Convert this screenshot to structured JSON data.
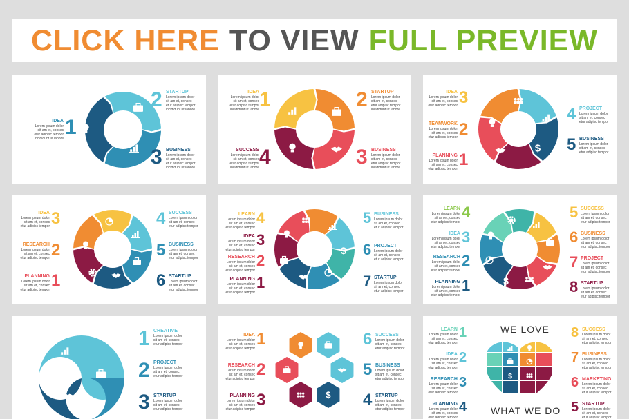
{
  "banner": {
    "part1": "CLICK HERE",
    "part2": "TO VIEW",
    "part3": "FULL PREVIEW",
    "color1": "#f08c32",
    "color2": "#555555",
    "color3": "#7ab829"
  },
  "lorem": "Lorem ipsum dolor\nsit am et, consec\netur adipisc tempor\nincididunt ut labore",
  "lorem_short": "Lorem ipsum dolor\nsit am et, consec\netur adipisc tempor",
  "colors": {
    "cyan": "#5ec4d8",
    "blue": "#2f8fb4",
    "navy": "#1d5a82",
    "yellow": "#f7c242",
    "orange": "#f08c32",
    "red": "#e84e5a",
    "maroon": "#8c1a44",
    "green": "#8cc84b",
    "mint": "#69d2b7",
    "teal": "#3fb4a8"
  },
  "labels": {
    "idea": "IDEA",
    "startup": "STARTUP",
    "business": "BUSINESS",
    "success": "SUCCESS",
    "teamwork": "TEAMWORK",
    "planning": "PLANNING",
    "project": "PROJECT",
    "research": "RESEARCH",
    "learn": "LEARN",
    "creative": "CREATIVE",
    "marketing": "MARKETING"
  },
  "digits": {
    "n1": "1",
    "n2": "2",
    "n3": "3",
    "n4": "4",
    "n5": "5",
    "n6": "6",
    "n7": "7",
    "n8": "8"
  },
  "heart": {
    "top": "WE LOVE",
    "bottom": "WHAT WE DO"
  },
  "icons": [
    "bulb-icon",
    "briefcase-icon",
    "chart-icon",
    "handshake-icon",
    "team-icon",
    "dollar-icon",
    "gear-icon",
    "pie-icon"
  ]
}
